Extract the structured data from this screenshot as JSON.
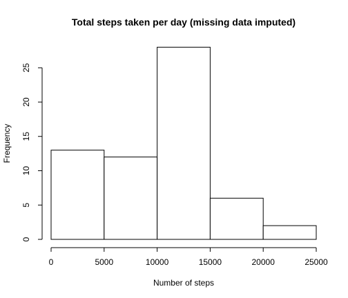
{
  "chart_data": {
    "type": "bar",
    "title": "Total steps taken per day (missing data imputed)",
    "xlabel": "Number of steps",
    "ylabel": "Frequency",
    "bins": [
      {
        "start": 0,
        "end": 5000,
        "count": 13
      },
      {
        "start": 5000,
        "end": 10000,
        "count": 12
      },
      {
        "start": 10000,
        "end": 15000,
        "count": 28
      },
      {
        "start": 15000,
        "end": 20000,
        "count": 6
      },
      {
        "start": 20000,
        "end": 25000,
        "count": 2
      }
    ],
    "xlim": [
      0,
      25000
    ],
    "ylim": [
      0,
      28
    ],
    "x_ticks": [
      0,
      5000,
      10000,
      15000,
      20000,
      25000
    ],
    "x_tick_labels": [
      "0",
      "5000",
      "10000",
      "15000",
      "20000",
      "25000"
    ],
    "y_ticks": [
      0,
      5,
      10,
      15,
      20,
      25
    ],
    "y_tick_labels": [
      "0",
      "5",
      "10",
      "15",
      "20",
      "25"
    ],
    "grid": false,
    "legend": "none",
    "bar_fill": "#ffffff",
    "bar_stroke": "#000000"
  }
}
